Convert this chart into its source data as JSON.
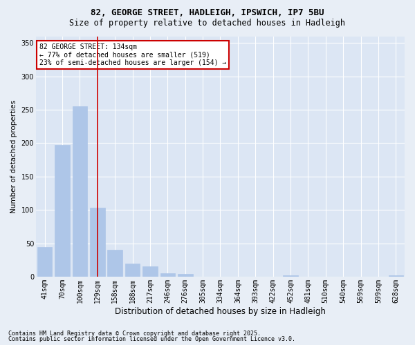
{
  "title1": "82, GEORGE STREET, HADLEIGH, IPSWICH, IP7 5BU",
  "title2": "Size of property relative to detached houses in Hadleigh",
  "xlabel": "Distribution of detached houses by size in Hadleigh",
  "ylabel": "Number of detached properties",
  "categories": [
    "41sqm",
    "70sqm",
    "100sqm",
    "129sqm",
    "158sqm",
    "188sqm",
    "217sqm",
    "246sqm",
    "276sqm",
    "305sqm",
    "334sqm",
    "364sqm",
    "393sqm",
    "422sqm",
    "452sqm",
    "481sqm",
    "510sqm",
    "540sqm",
    "569sqm",
    "599sqm",
    "628sqm"
  ],
  "values": [
    44,
    197,
    255,
    103,
    40,
    20,
    15,
    5,
    4,
    0,
    0,
    0,
    0,
    0,
    2,
    0,
    0,
    0,
    0,
    0,
    2
  ],
  "bar_color": "#aec6e8",
  "vline_x": 3,
  "vline_color": "#cc0000",
  "annotation_line1": "82 GEORGE STREET: 134sqm",
  "annotation_line2": "← 77% of detached houses are smaller (519)",
  "annotation_line3": "23% of semi-detached houses are larger (154) →",
  "annotation_box_color": "#cc0000",
  "ylim": [
    0,
    360
  ],
  "yticks": [
    0,
    50,
    100,
    150,
    200,
    250,
    300,
    350
  ],
  "footnote1": "Contains HM Land Registry data © Crown copyright and database right 2025.",
  "footnote2": "Contains public sector information licensed under the Open Government Licence v3.0.",
  "background_color": "#e8eef6",
  "plot_bg_color": "#dce6f4",
  "grid_color": "#ffffff",
  "title1_fontsize": 9,
  "title2_fontsize": 8.5,
  "ylabel_fontsize": 7.5,
  "xlabel_fontsize": 8.5,
  "tick_fontsize": 7,
  "annotation_fontsize": 7,
  "footnote_fontsize": 6
}
